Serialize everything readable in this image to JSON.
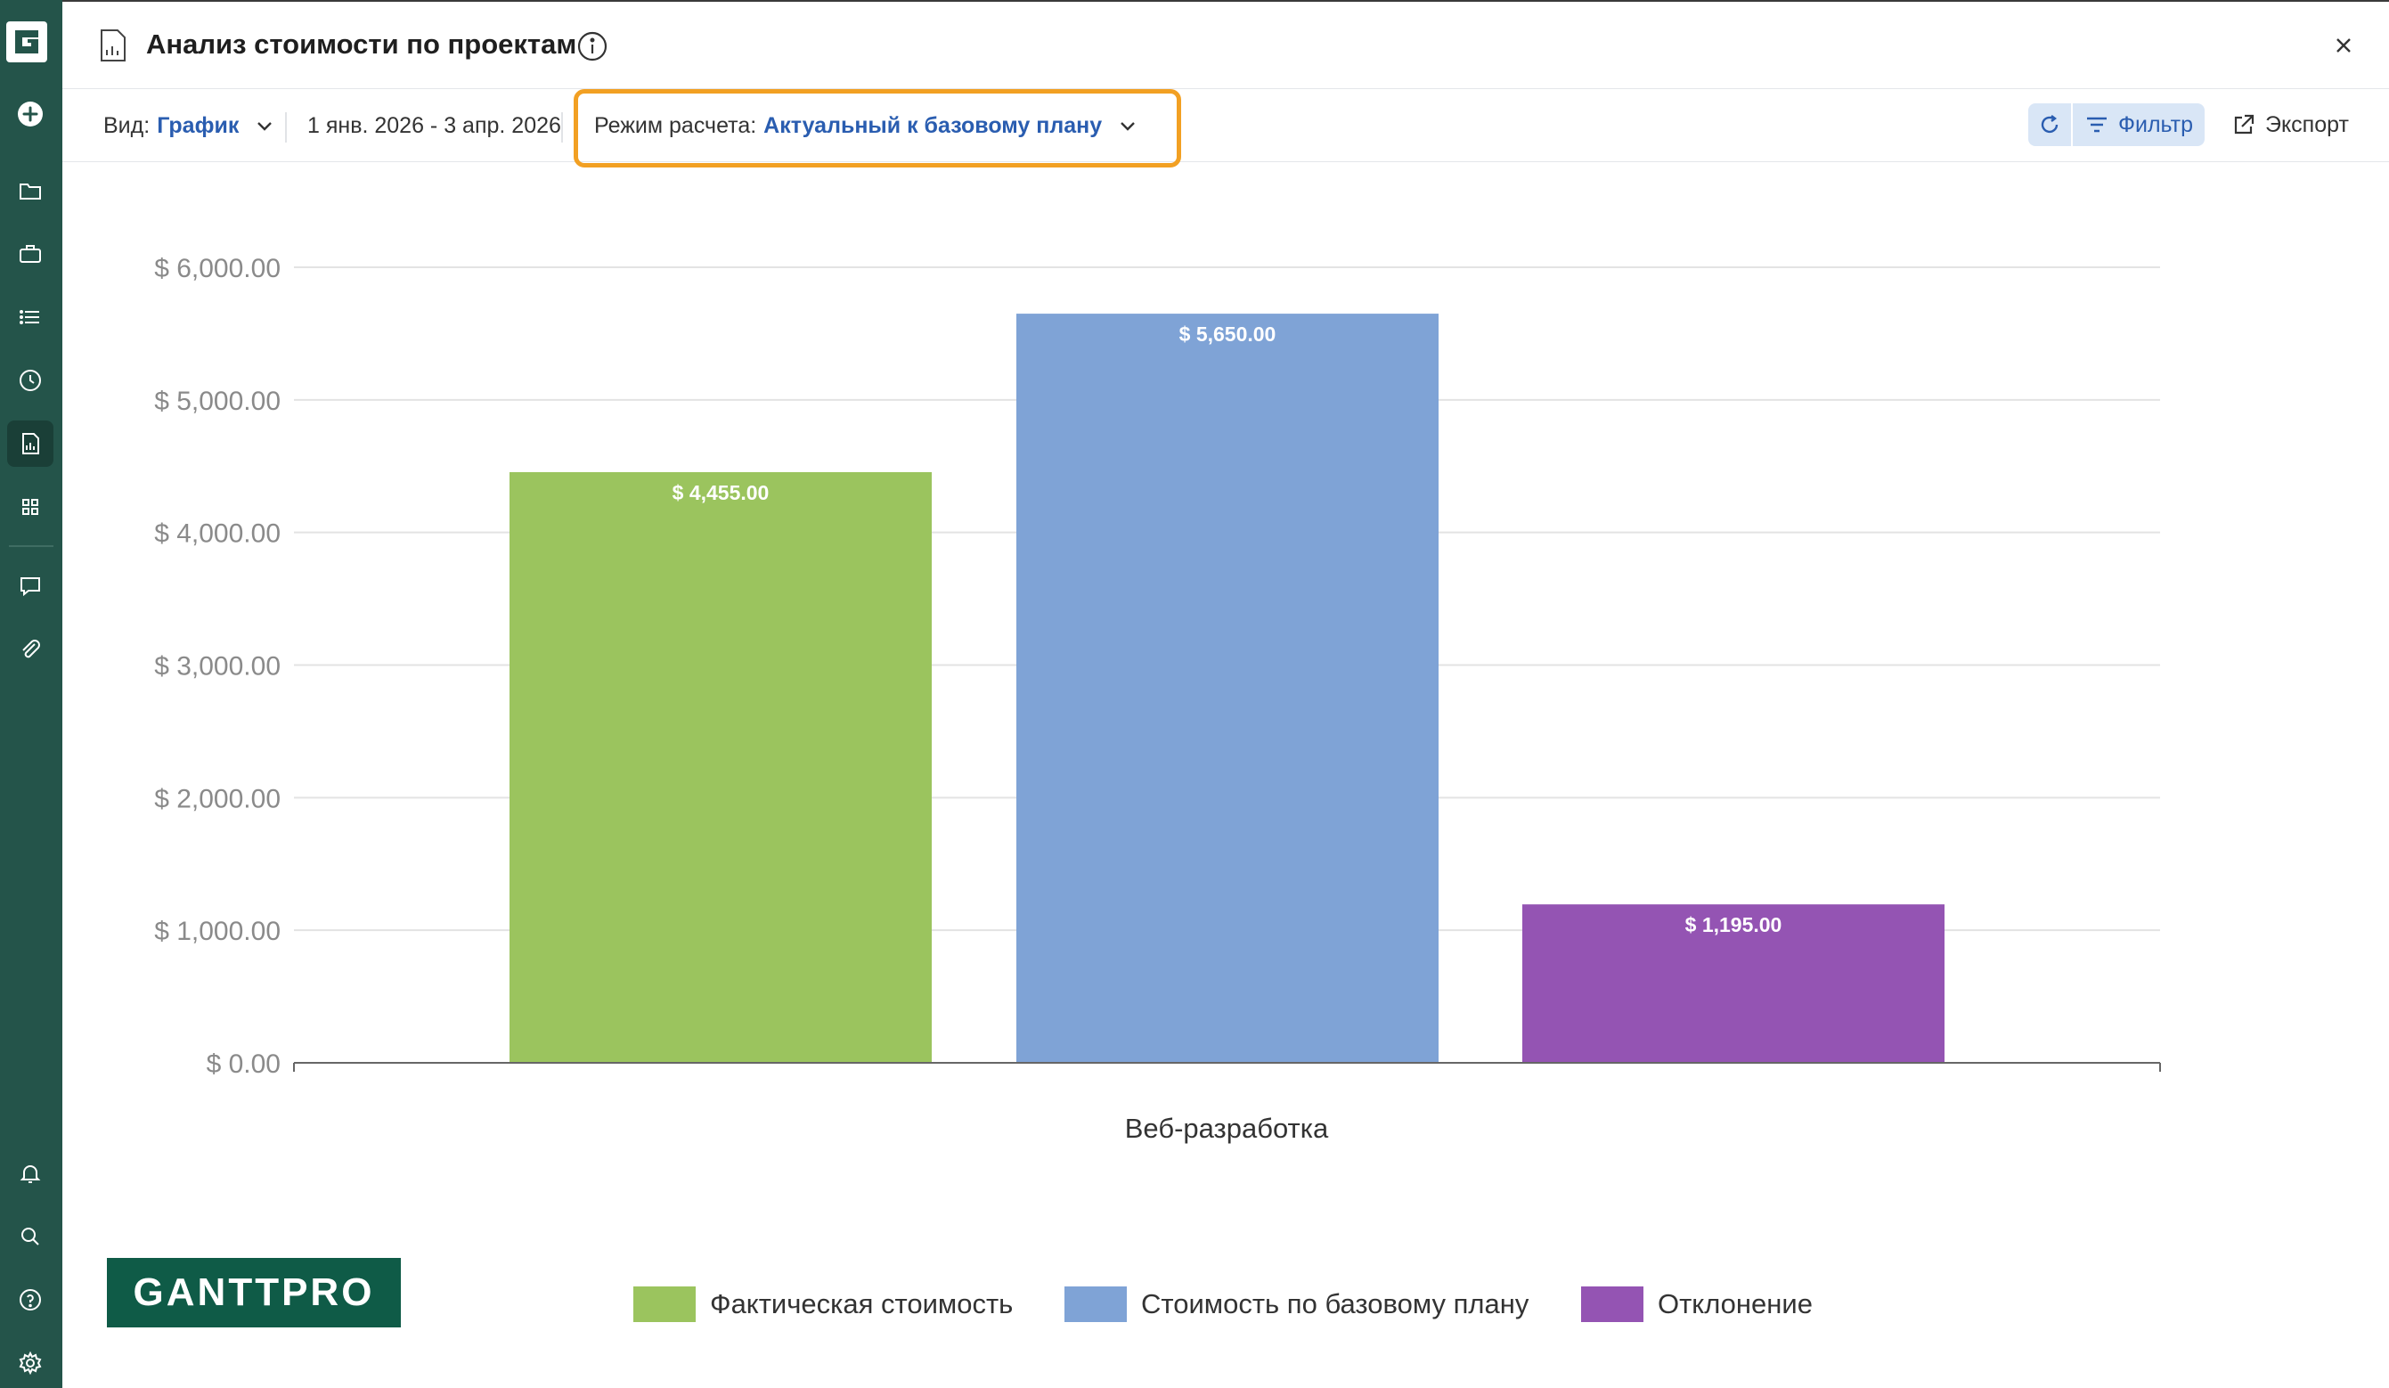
{
  "header": {
    "title": "Анализ стоимости по проектам"
  },
  "toolbar": {
    "view_label": "Вид:",
    "view_value": "График",
    "date_range": "1 янв. 2026 - 3 апр. 2026",
    "mode_label": "Режим расчета:",
    "mode_value": "Актуальный к базовому плану",
    "filter_label": "Фильтр",
    "export_label": "Экспорт"
  },
  "footer": {
    "logo_text": "GANTTPRO"
  },
  "colors": {
    "sidebar": "#24544a",
    "accent": "#2a5db0",
    "highlight": "#f2a023",
    "actual": "#9bc45e",
    "baseline": "#7fa3d6",
    "variance": "#9454b3"
  },
  "sidebar_icons": [
    "logo-g-icon",
    "plus-circle-icon",
    "folder-icon",
    "briefcase-icon",
    "list-icon",
    "clock-icon",
    "report-icon",
    "grid-icon",
    "chat-icon",
    "paperclip-icon",
    "bell-icon",
    "search-icon",
    "help-icon",
    "settings-icon"
  ],
  "chart_data": {
    "type": "bar",
    "categories": [
      "Веб-разработка"
    ],
    "series": [
      {
        "name": "Фактическая стоимость",
        "values": [
          4455
        ],
        "color": "#9bc45e",
        "label": "$ 4,455.00"
      },
      {
        "name": "Стоимость по базовому плану",
        "values": [
          5650
        ],
        "color": "#7fa3d6",
        "label": "$ 5,650.00"
      },
      {
        "name": "Отклонение",
        "values": [
          1195
        ],
        "color": "#9454b3",
        "label": "$ 1,195.00"
      }
    ],
    "ylim": [
      0,
      6000
    ],
    "yticks": [
      "$ 0.00",
      "$ 1,000.00",
      "$ 2,000.00",
      "$ 3,000.00",
      "$ 4,000.00",
      "$ 5,000.00",
      "$ 6,000.00"
    ],
    "grid": true,
    "legend": "bottom"
  }
}
